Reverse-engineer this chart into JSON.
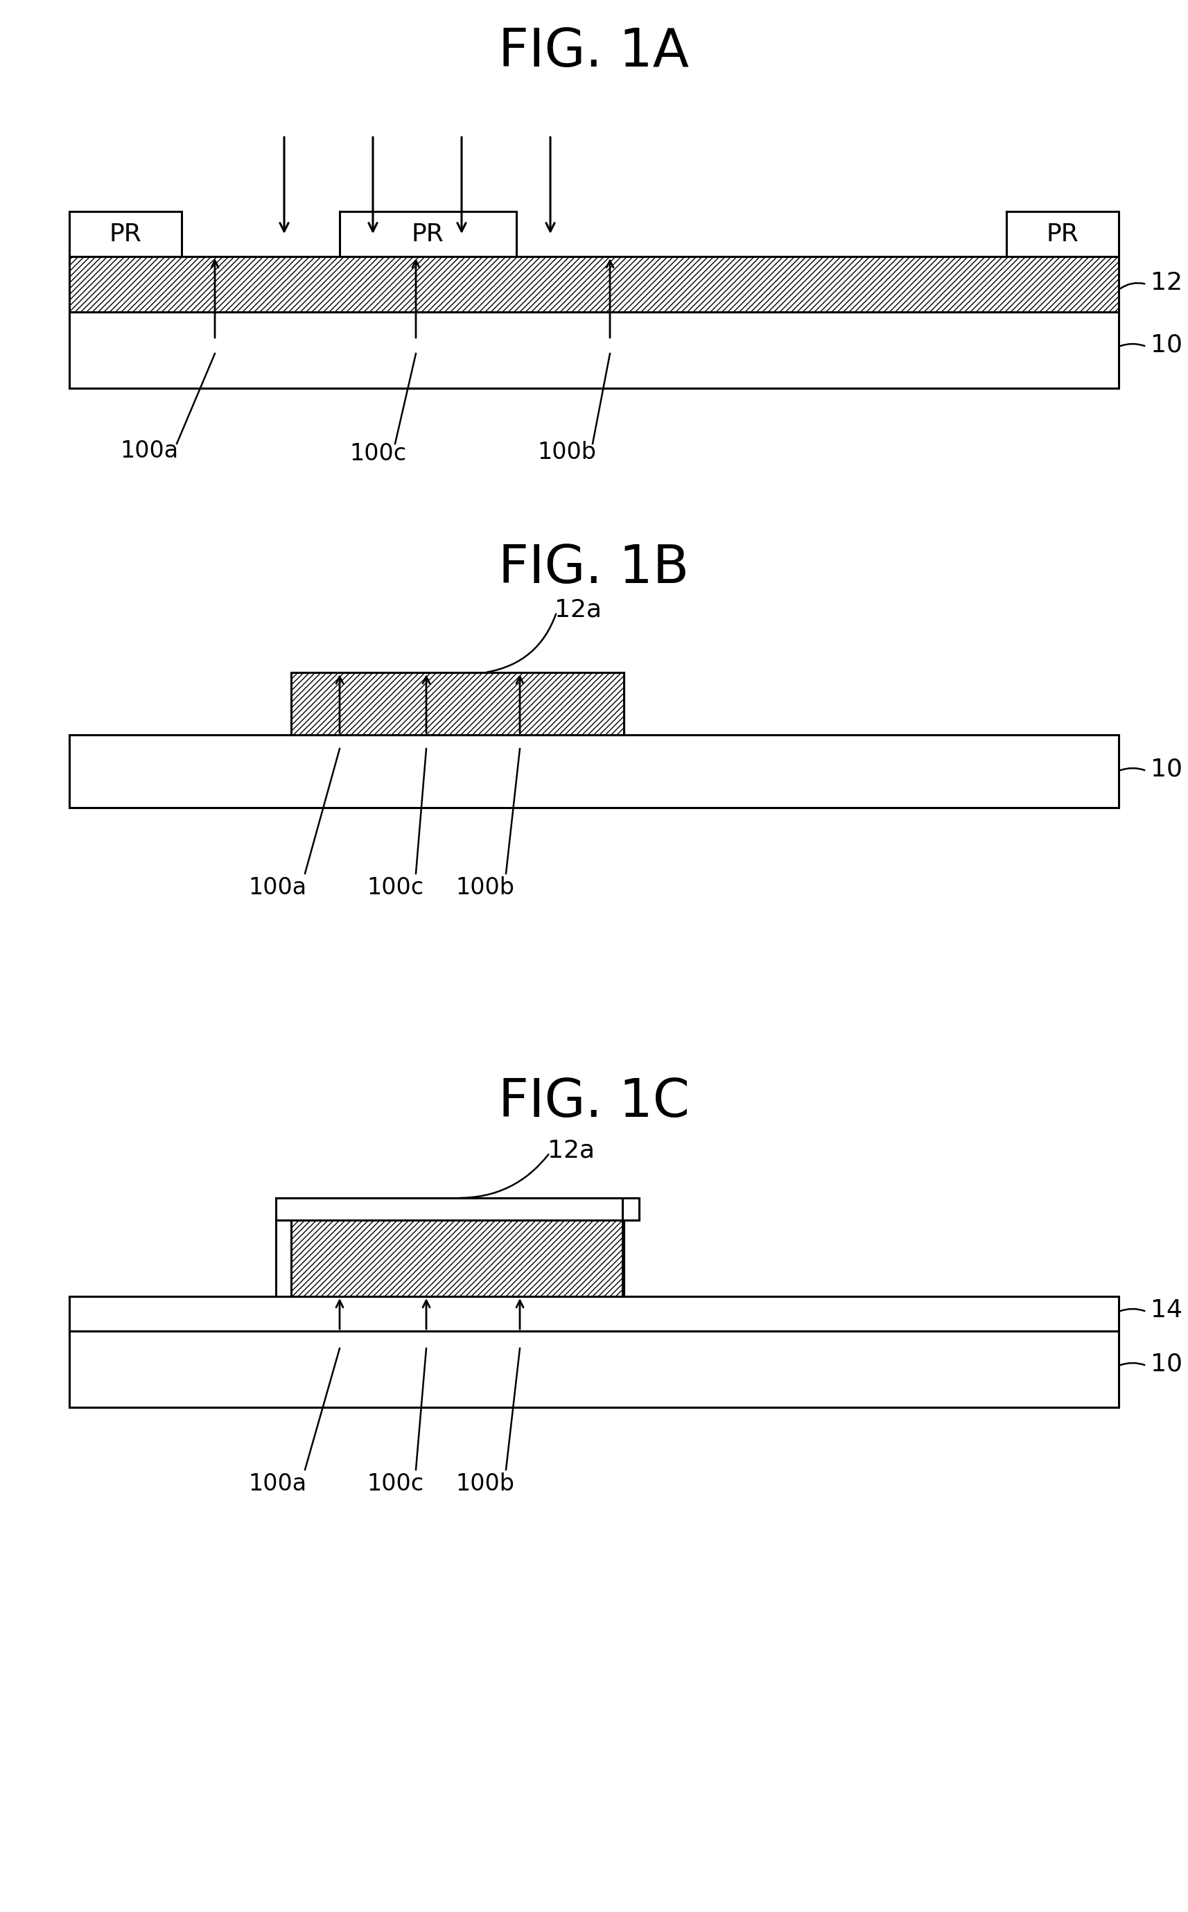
{
  "fig_title_1A": "FIG. 1A",
  "fig_title_1B": "FIG. 1B",
  "fig_title_1C": "FIG. 1C",
  "background_color": "#ffffff",
  "line_color": "#000000",
  "pr_label": "PR",
  "label_12": "12",
  "label_10": "10",
  "label_12a": "12a",
  "label_14": "14",
  "label_100a": "100a",
  "label_100b": "100b",
  "label_100c": "100c",
  "fig_w": 1714,
  "fig_h": 2758
}
